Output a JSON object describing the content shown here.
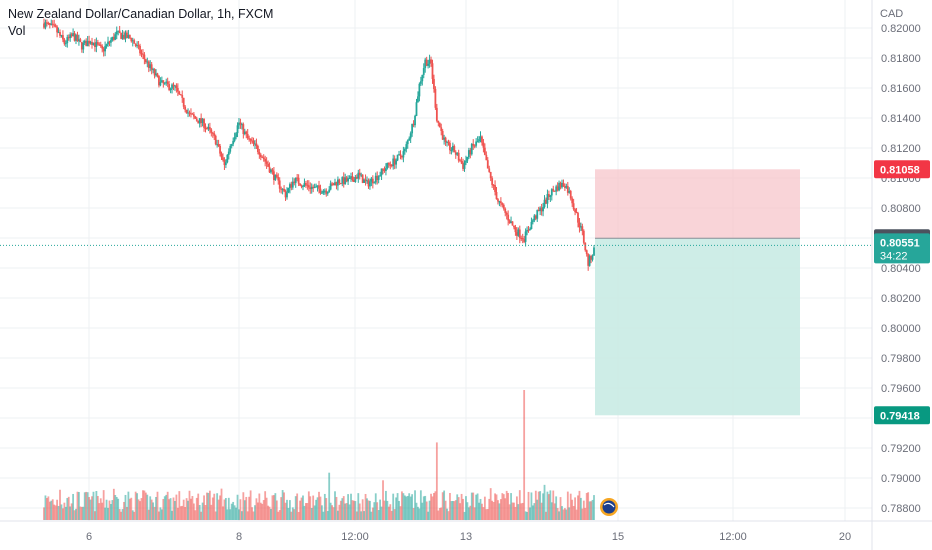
{
  "header": {
    "symbol_title": "New Zealand Dollar/Canadian Dollar, 1h, FXCM",
    "volume_label": "Vol"
  },
  "currency_label": "CAD",
  "colors": {
    "up": "#26a69a",
    "down": "#ef5350",
    "stop_zone": "#f7c5cb",
    "target_zone": "#c9ebe4",
    "stop_tag": "#f23645",
    "target_tag": "#089981",
    "entry_tag": "#4c525e",
    "current_tag": "#26a69a",
    "grid": "#eef0f3"
  },
  "chart_data": {
    "type": "candlestick",
    "y_ticks": [
      "0.82000",
      "0.81800",
      "0.81600",
      "0.81400",
      "0.81200",
      "0.81000",
      "0.80800",
      "0.80600",
      "0.80400",
      "0.80200",
      "0.80000",
      "0.79800",
      "0.79600",
      "0.79400",
      "0.79200",
      "0.79000",
      "0.78800"
    ],
    "ylim": [
      0.7875,
      0.8215
    ],
    "x_ticks": [
      "6",
      "8",
      "12:00",
      "13",
      "15",
      "12:00",
      "20"
    ],
    "position": {
      "type": "short",
      "stop_loss": 0.81058,
      "entry": 0.80598,
      "take_profit": 0.79418
    },
    "current_price": 0.80551,
    "countdown": "34:22",
    "price_tags": {
      "stop": "0.81058",
      "entry": "0.80598",
      "current": "0.80551",
      "target": "0.79418"
    },
    "close_path": [
      [
        0,
        0.8203
      ],
      [
        8,
        0.8199
      ],
      [
        14,
        0.819
      ],
      [
        20,
        0.8195
      ],
      [
        26,
        0.8188
      ],
      [
        32,
        0.8192
      ],
      [
        40,
        0.8185
      ],
      [
        50,
        0.8196
      ],
      [
        60,
        0.8193
      ],
      [
        70,
        0.8178
      ],
      [
        80,
        0.8163
      ],
      [
        90,
        0.816
      ],
      [
        100,
        0.8142
      ],
      [
        110,
        0.8136
      ],
      [
        118,
        0.8125
      ],
      [
        124,
        0.8108
      ],
      [
        128,
        0.8122
      ],
      [
        134,
        0.8137
      ],
      [
        140,
        0.8126
      ],
      [
        148,
        0.8118
      ],
      [
        154,
        0.8108
      ],
      [
        160,
        0.8098
      ],
      [
        166,
        0.8089
      ],
      [
        172,
        0.8099
      ],
      [
        178,
        0.8096
      ],
      [
        186,
        0.8093
      ],
      [
        194,
        0.8092
      ],
      [
        202,
        0.8098
      ],
      [
        210,
        0.8098
      ],
      [
        216,
        0.8102
      ],
      [
        222,
        0.8096
      ],
      [
        230,
        0.8102
      ],
      [
        236,
        0.8108
      ],
      [
        242,
        0.8112
      ],
      [
        248,
        0.8118
      ],
      [
        254,
        0.8138
      ],
      [
        258,
        0.8162
      ],
      [
        262,
        0.8178
      ],
      [
        266,
        0.8176
      ],
      [
        270,
        0.814
      ],
      [
        276,
        0.8122
      ],
      [
        282,
        0.8118
      ],
      [
        288,
        0.8108
      ],
      [
        294,
        0.812
      ],
      [
        300,
        0.8126
      ],
      [
        306,
        0.8102
      ],
      [
        312,
        0.8085
      ],
      [
        318,
        0.8075
      ],
      [
        324,
        0.8065
      ],
      [
        330,
        0.806
      ],
      [
        336,
        0.8072
      ],
      [
        342,
        0.808
      ],
      [
        348,
        0.809
      ],
      [
        354,
        0.8095
      ],
      [
        358,
        0.8096
      ],
      [
        362,
        0.8088
      ],
      [
        366,
        0.8075
      ],
      [
        370,
        0.8063
      ],
      [
        374,
        0.8043
      ],
      [
        378,
        0.8052
      ]
    ]
  }
}
